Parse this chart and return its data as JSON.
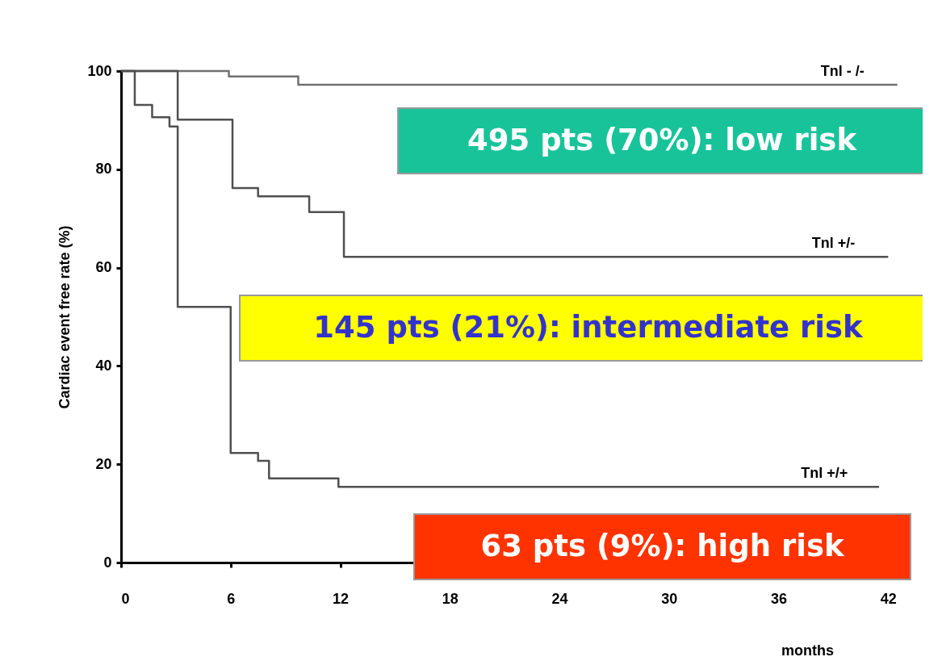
{
  "chart_data": {
    "type": "step",
    "xlabel": "months",
    "ylabel": "Cardiac event free rate (%)",
    "xlim": [
      0,
      43
    ],
    "xticks": [
      0,
      6,
      12,
      18,
      24,
      30,
      36,
      42
    ],
    "ylim": [
      0,
      100
    ],
    "yticks": [
      0,
      20,
      40,
      60,
      80,
      100
    ],
    "grid": false,
    "marker": "none",
    "line_style": "solid",
    "series": [
      {
        "name": "Tnl  - /-",
        "color": "#707070",
        "x": [
          0,
          5.9,
          9.7,
          42.5
        ],
        "values": [
          100,
          98.9,
          97.2,
          97.2
        ]
      },
      {
        "name": "Tnl  +/-",
        "color": "#505050",
        "x": [
          0,
          3.1,
          6.1,
          7.5,
          10.3,
          12.2,
          42
        ],
        "values": [
          100,
          90.1,
          76.2,
          74.5,
          71.3,
          62.2,
          62.2
        ]
      },
      {
        "name": "Tnl  +/+",
        "color": "#505050",
        "x": [
          0,
          0.75,
          1.7,
          2.65,
          3.1,
          6.0,
          7.5,
          8.1,
          11.9,
          41.5
        ],
        "values": [
          100,
          93.1,
          90.6,
          88.7,
          52,
          22.3,
          20.7,
          17.1,
          15.4,
          15.4
        ]
      }
    ],
    "annotations": [
      "495 pts (70%): low risk",
      "145 pts (21%): intermediate risk",
      "63 pts (9%): high risk"
    ]
  }
}
